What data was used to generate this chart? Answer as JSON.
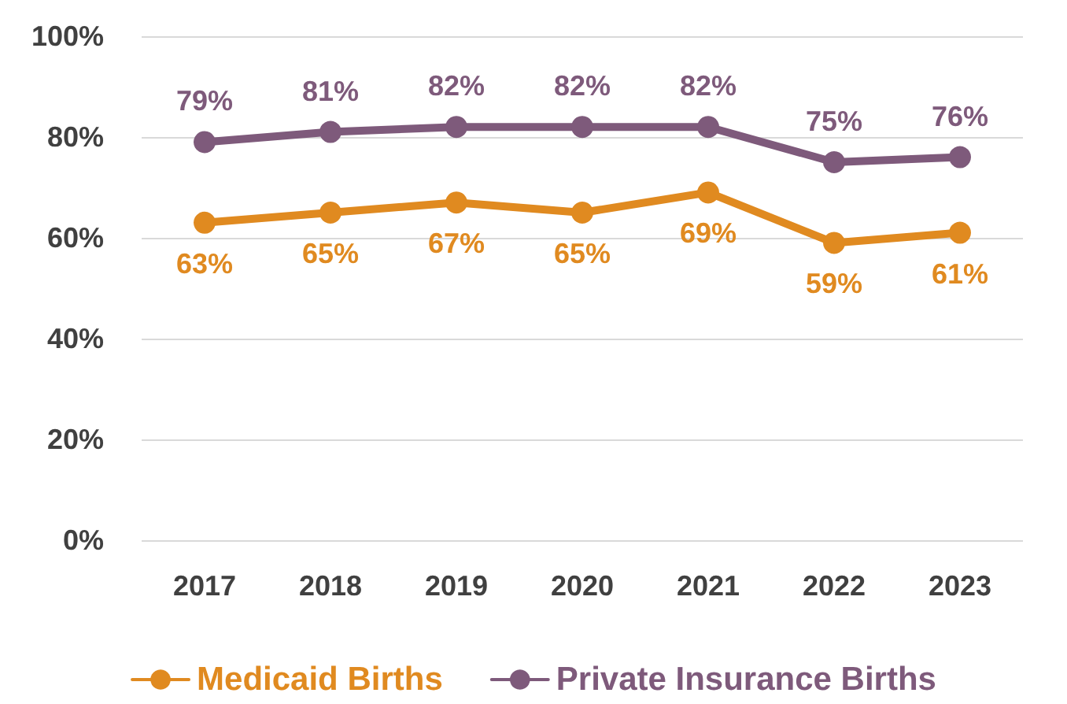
{
  "chart_data": {
    "type": "line",
    "categories": [
      "2017",
      "2018",
      "2019",
      "2020",
      "2021",
      "2022",
      "2023"
    ],
    "series": [
      {
        "name": "Medicaid Births",
        "color": "#e08a20",
        "values": [
          63,
          65,
          67,
          65,
          69,
          59,
          61
        ],
        "value_labels": [
          "63%",
          "65%",
          "67%",
          "65%",
          "69%",
          "59%",
          "61%"
        ]
      },
      {
        "name": "Private Insurance Births",
        "color": "#7e5a7b",
        "values": [
          79,
          81,
          82,
          82,
          82,
          75,
          76
        ],
        "value_labels": [
          "79%",
          "81%",
          "82%",
          "82%",
          "82%",
          "75%",
          "76%"
        ]
      }
    ],
    "ylim": [
      0,
      100
    ],
    "yticks": [
      {
        "value": 0,
        "label": "0%"
      },
      {
        "value": 20,
        "label": "20%"
      },
      {
        "value": 40,
        "label": "40%"
      },
      {
        "value": 60,
        "label": "60%"
      },
      {
        "value": 80,
        "label": "80%"
      },
      {
        "value": 100,
        "label": "100%"
      }
    ],
    "grid": "y",
    "legend": "bottom",
    "marker": "circle",
    "line_style": "solid"
  }
}
